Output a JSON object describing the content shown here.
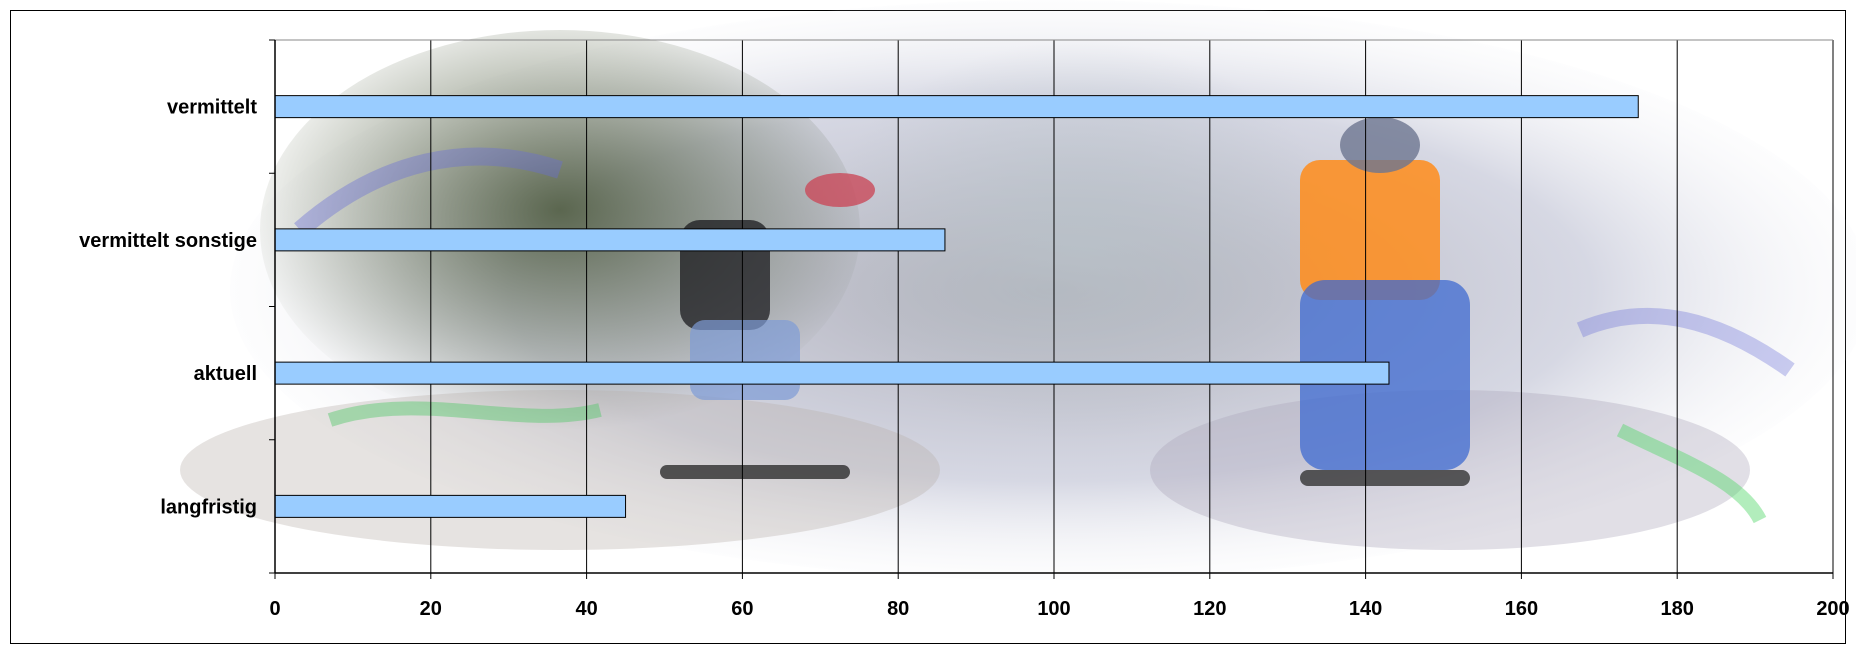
{
  "chart_data": {
    "type": "bar",
    "orientation": "horizontal",
    "categories": [
      "vermittelt",
      "vermittelt sonstige",
      "aktuell",
      "langfristig"
    ],
    "values": [
      175,
      86,
      143,
      45
    ],
    "xlim": [
      0,
      200
    ],
    "x_ticks": [
      0,
      20,
      40,
      60,
      80,
      100,
      120,
      140,
      160,
      180,
      200
    ],
    "grid": "vertical",
    "legend": "none",
    "title": "",
    "xlabel": "",
    "ylabel": "",
    "bar_color": "#99ccff",
    "background": "photo-collage"
  }
}
